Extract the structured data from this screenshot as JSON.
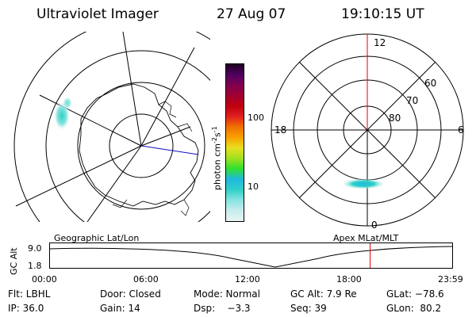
{
  "header": {
    "instrument": "Ultraviolet Imager",
    "date": "27 Aug 07",
    "time": "19:10:15 UT"
  },
  "colorbar": {
    "unit_label": "photon cm",
    "unit_exp_1": "-2",
    "unit_mid": "s",
    "unit_exp_2": "-1",
    "ticks": [
      "100",
      "10"
    ],
    "colors": [
      "#e8f4f4",
      "#c8ecec",
      "#88e4e0",
      "#30d0c8",
      "#20b8e0",
      "#30e030",
      "#a0e020",
      "#e8e020",
      "#f8a000",
      "#f07000",
      "#e02020",
      "#c00010",
      "#a00030",
      "#800050",
      "#500060",
      "#200020"
    ]
  },
  "left_panel": {
    "caption": "Geographic Lat/Lon"
  },
  "right_panel": {
    "caption": "Apex MLat/MLT",
    "mlt_labels": {
      "top": "12",
      "left": "18",
      "right": "6",
      "bottom": "0"
    },
    "mlat_labels": [
      "60",
      "70",
      "80"
    ]
  },
  "timeline": {
    "ylabel": "GC Alt",
    "yticks": [
      "9.0",
      "1.8"
    ],
    "xticks": [
      "00:00",
      "06:00",
      "12:00",
      "18:00",
      "23:59"
    ],
    "current_time_fraction": 0.796,
    "marker_color": "#e00000"
  },
  "info": {
    "flt": "Flt: LBHL",
    "door": "Door: Closed",
    "mode": "Mode: Normal",
    "gc_alt": "GC Alt: 7.9 Re",
    "glat": "GLat: −78.6",
    "ip": "IP: 36.0",
    "gain": "Gain: 14",
    "dsp": "Dsp:    −3.3",
    "seq": "Seq: 39",
    "glon": "GLon:  80.2"
  }
}
